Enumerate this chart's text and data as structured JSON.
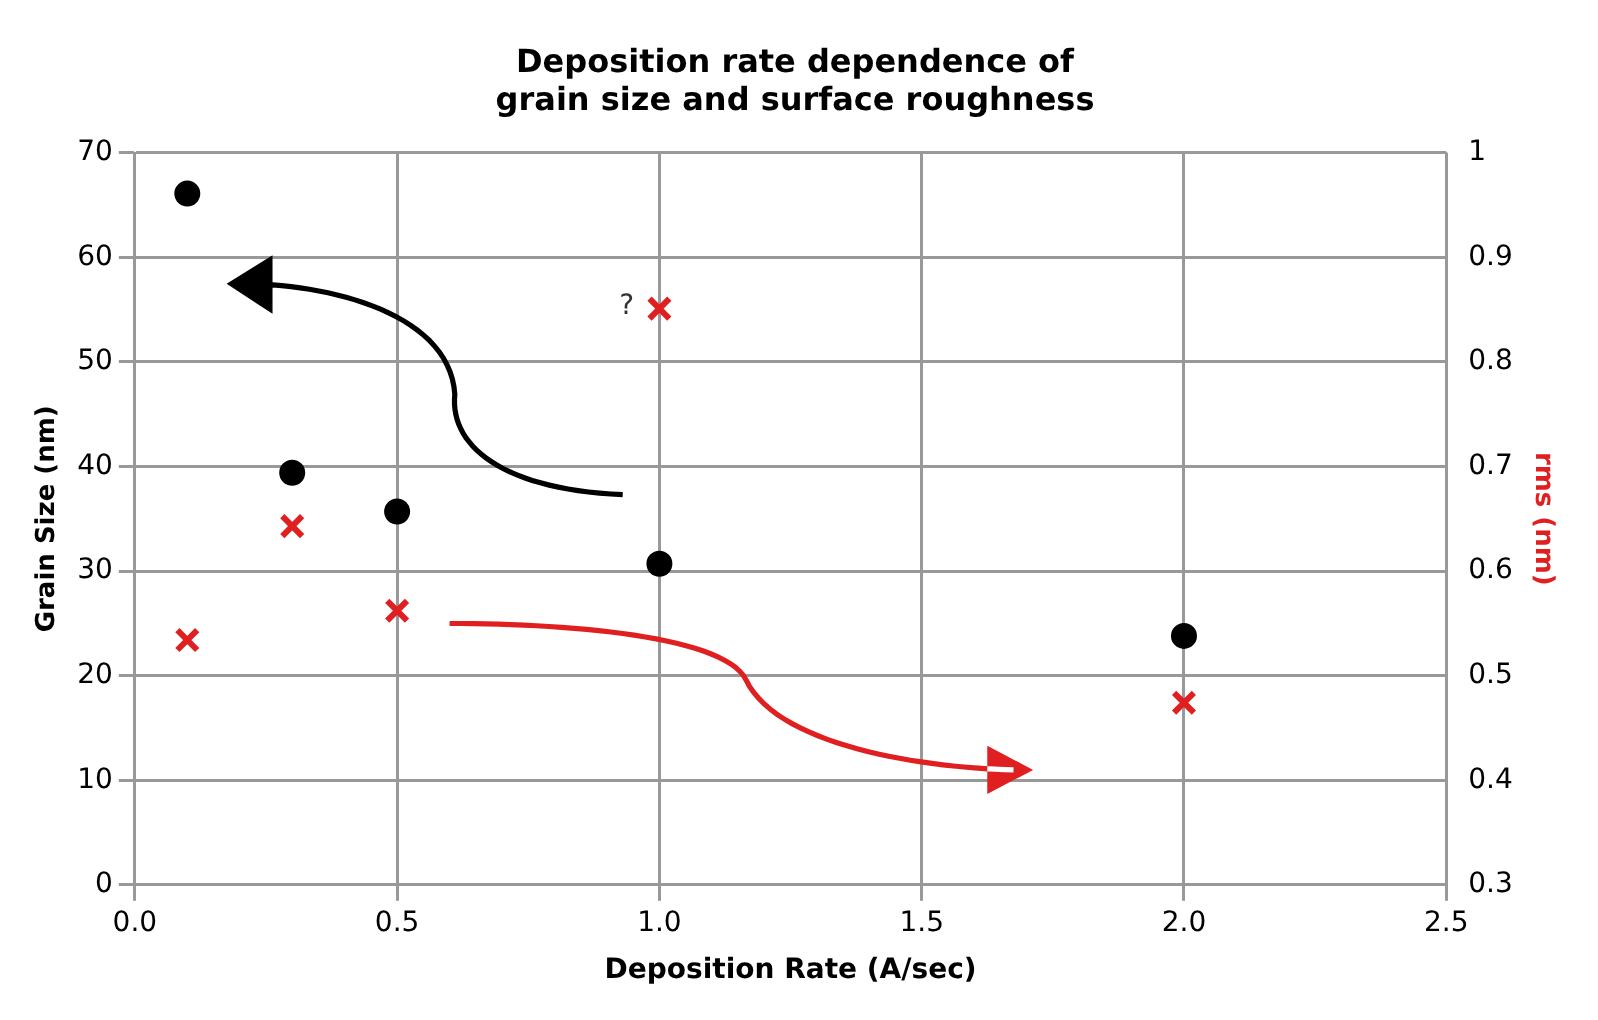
{
  "chart_data": {
    "type": "scatter",
    "title": "Deposition rate dependence of\ngrain size and surface roughness",
    "xlabel": "Deposition Rate (A/sec)",
    "ylabel": "Grain Size (nm)",
    "y2label": "rms (nm)",
    "x": [
      0.1,
      0.3,
      0.5,
      1.0,
      2.0
    ],
    "series": [
      {
        "color": "#000000",
        "marker": "circle",
        "values": [
          66.1,
          39.4,
          35.7,
          30.7,
          23.8
        ]
      },
      {
        "color": "#e02020",
        "marker": "cross",
        "axis": "y2",
        "values": [
          0.534,
          0.643,
          0.562,
          0.851,
          0.474
        ]
      }
    ],
    "xlim": [
      0,
      2.5
    ],
    "xticks": [
      {
        "value": 0,
        "label": "0.0"
      },
      {
        "value": 0.5,
        "label": "0.5"
      },
      {
        "value": 1,
        "label": "1.0"
      },
      {
        "value": 1.5,
        "label": "1.5"
      },
      {
        "value": 2,
        "label": "2.0"
      },
      {
        "value": 2.5,
        "label": "2.5"
      }
    ],
    "ylim": [
      0,
      70
    ],
    "yticks": [
      0,
      10,
      20,
      30,
      40,
      50,
      60,
      70
    ],
    "y2lim": [
      0.3,
      1
    ],
    "y2ticks": [
      0.3,
      0.4,
      0.5,
      0.6,
      0.7,
      0.8,
      0.9,
      1
    ],
    "annotations": [
      "?"
    ],
    "grid": true,
    "legend": false
  }
}
